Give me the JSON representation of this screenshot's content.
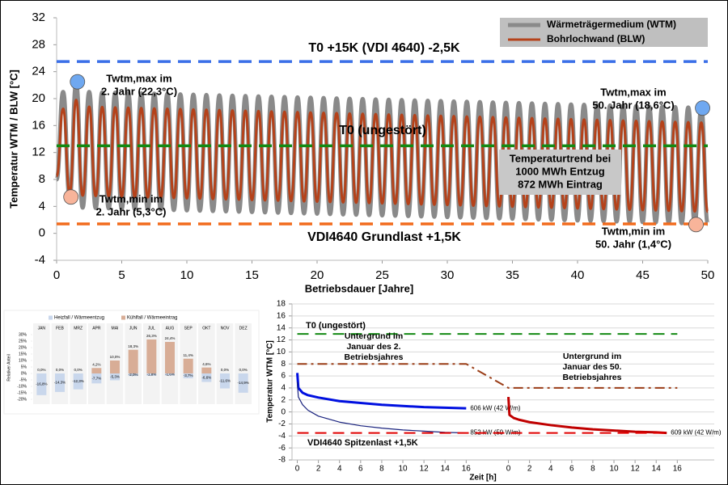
{
  "chart_data": [
    {
      "type": "line",
      "y_label": "Temperatur WTM / BLW [°C]",
      "x_label": "Betriebsdauer [Jahre]",
      "xlim": [
        0,
        50
      ],
      "xticks": [
        0,
        5,
        10,
        15,
        20,
        25,
        30,
        35,
        40,
        45,
        50
      ],
      "ylim": [
        -4,
        32
      ],
      "yticks": [
        -4,
        0,
        4,
        8,
        12,
        16,
        20,
        24,
        28,
        32
      ],
      "x": [
        0,
        0.5,
        1,
        1.5,
        2,
        2.5,
        3,
        3.5,
        4,
        4.5,
        5,
        5.5,
        6,
        6.5,
        7,
        7.5,
        8,
        8.5,
        9,
        9.5,
        10,
        10.5,
        11,
        11.5,
        12,
        12.5,
        13,
        13.5,
        14,
        14.5,
        15,
        15.5,
        16,
        16.5,
        17,
        17.5,
        18,
        18.5,
        19,
        19.5,
        20,
        20.5,
        21,
        21.5,
        22,
        22.5,
        23,
        23.5,
        24,
        24.5,
        25,
        25.5,
        26,
        26.5,
        27,
        27.5,
        28,
        28.5,
        29,
        29.5,
        30,
        30.5,
        31,
        31.5,
        32,
        32.5,
        33,
        33.5,
        34,
        34.5,
        35,
        35.5,
        36,
        36.5,
        37,
        37.5,
        38,
        38.5,
        39,
        39.5,
        40,
        40.5,
        41,
        41.5,
        42,
        42.5,
        43,
        43.5,
        44,
        44.5,
        45,
        45.5,
        46,
        46.5,
        47,
        47.5,
        48,
        48.5,
        49,
        49.5,
        50
      ],
      "series": [
        {
          "name": "Wärmeträgermedium (WTM)",
          "color": "#8a8a8a",
          "weight": "thick",
          "values": [
            8.0,
            21.0,
            5.3,
            22.3,
            3.8,
            21.0,
            3.75,
            20.95,
            3.7,
            20.9,
            3.65,
            20.85,
            3.6,
            20.8,
            3.55,
            20.75,
            3.5,
            20.7,
            3.45,
            20.65,
            3.4,
            20.6,
            3.35,
            20.55,
            3.3,
            20.5,
            3.25,
            20.45,
            3.2,
            20.4,
            3.15,
            20.35,
            3.1,
            20.3,
            3.05,
            20.25,
            3.0,
            20.2,
            2.95,
            20.15,
            2.9,
            20.1,
            2.85,
            20.05,
            2.8,
            20.0,
            2.75,
            19.95,
            2.7,
            19.9,
            2.65,
            19.85,
            2.6,
            19.8,
            2.55,
            19.75,
            2.5,
            19.7,
            2.45,
            19.65,
            2.4,
            19.6,
            2.35,
            19.55,
            2.3,
            19.5,
            2.25,
            19.45,
            2.2,
            19.4,
            2.15,
            19.35,
            2.1,
            19.3,
            2.05,
            19.25,
            2.0,
            19.2,
            1.95,
            19.15,
            1.9,
            19.1,
            1.85,
            19.05,
            1.8,
            19.0,
            1.75,
            18.95,
            1.7,
            18.9,
            1.65,
            18.85,
            1.6,
            18.8,
            1.55,
            18.75,
            1.5,
            18.7,
            1.45,
            18.6,
            1.4
          ]
        },
        {
          "name": "Bohrlochwand (BLW)",
          "color": "#b5421a",
          "weight": "normal",
          "values": [
            8.5,
            18.5,
            6.0,
            19.8,
            5.6,
            18.8,
            5.55,
            18.75,
            5.5,
            18.7,
            5.45,
            18.65,
            5.4,
            18.6,
            5.35,
            18.55,
            5.3,
            18.5,
            5.25,
            18.45,
            5.2,
            18.4,
            5.15,
            18.35,
            5.1,
            18.3,
            5.05,
            18.25,
            5.0,
            18.2,
            4.95,
            18.15,
            4.9,
            18.1,
            4.85,
            18.05,
            4.8,
            18.0,
            4.75,
            17.95,
            4.7,
            17.9,
            4.65,
            17.85,
            4.6,
            17.8,
            4.55,
            17.75,
            4.5,
            17.7,
            4.45,
            17.65,
            4.4,
            17.6,
            4.35,
            17.55,
            4.3,
            17.5,
            4.25,
            17.45,
            4.2,
            17.4,
            4.15,
            17.35,
            4.1,
            17.3,
            4.05,
            17.25,
            4.0,
            17.2,
            3.95,
            17.15,
            3.9,
            17.1,
            3.85,
            17.05,
            3.8,
            17.0,
            3.75,
            16.95,
            3.7,
            16.9,
            3.65,
            16.85,
            3.6,
            16.8,
            3.55,
            16.75,
            3.5,
            16.7,
            3.45,
            16.65,
            3.4,
            16.6,
            3.35,
            16.55,
            3.3,
            16.5,
            3.25,
            16.45,
            3.2
          ]
        }
      ],
      "legend": "top-right",
      "reference_lines": [
        {
          "label": "T0 +15K (VDI 4640) -2,5K",
          "value": 25.5,
          "color": "#3a6fe8"
        },
        {
          "label": "T0 (ungestört)",
          "value": 13,
          "color": "#138a13"
        },
        {
          "label": "VDI4640 Grundlast +1,5K",
          "value": 1.4,
          "color": "#f26b1d"
        }
      ],
      "annotations": [
        {
          "lines": [
            "Twtm,max im",
            "2. Jahr (22,3°C)"
          ],
          "x": 1.6,
          "y": 22.5,
          "color": "#6fa8f0"
        },
        {
          "lines": [
            "Twtm,min im",
            "2. Jahr (5,3°C)"
          ],
          "x": 1.1,
          "y": 5.4,
          "color": "#f8b49a"
        },
        {
          "lines": [
            "Twtm,max im",
            "50. Jahr (18,6°C)"
          ],
          "x": 49.6,
          "y": 18.6,
          "color": "#6fa8f0"
        },
        {
          "lines": [
            "Twtm,min im",
            "50. Jahr (1,4°C)"
          ],
          "x": 49.1,
          "y": 1.3,
          "color": "#f8b49a"
        }
      ],
      "note": {
        "lines": [
          "Temperaturtrend bei",
          "1000 MWh Entzug",
          "872 MWh Eintrag"
        ]
      }
    },
    {
      "type": "bar",
      "y_label": "Relativer Anteil",
      "categories": [
        "JAN",
        "FEB",
        "MRZ",
        "APR",
        "MAI",
        "JUN",
        "JUL",
        "AUG",
        "SEP",
        "OKT",
        "NOV",
        "DEZ"
      ],
      "ylim": [
        -20,
        30
      ],
      "yticks": [
        {
          "value": 30,
          "label": "30%"
        },
        {
          "value": 25,
          "label": "25%"
        },
        {
          "value": 20,
          "label": "20%"
        },
        {
          "value": 15,
          "label": "15%"
        },
        {
          "value": 10,
          "label": "10%"
        },
        {
          "value": 5,
          "label": "5%"
        },
        {
          "value": 0,
          "label": "0%"
        },
        {
          "value": -5,
          "label": "-5%"
        },
        {
          "value": -10,
          "label": "-10%"
        },
        {
          "value": -15,
          "label": "-15%"
        },
        {
          "value": -20,
          "label": "-20%"
        }
      ],
      "legend": "top",
      "series": [
        {
          "name": "Heizfall / Wärmeentzug",
          "color": "#c9d7ec",
          "values": [
            -16.8,
            -14.3,
            -12.3,
            -7.7,
            -5.3,
            -2.0,
            -1.8,
            -1.6,
            -3.7,
            -6.6,
            -11.6,
            -14.9
          ],
          "value_labels": [
            "-16,8%",
            "-14,3%",
            "-12,3%",
            "-7,7%",
            "-5,3%",
            "-2,0%",
            "-1,8%",
            "-1,6%",
            "-3,7%",
            "-6,6%",
            "-11,6%",
            "-14,9%"
          ]
        },
        {
          "name": "Kühlfall / Wärmeeintrag",
          "color": "#d8ad96",
          "values": [
            0,
            0,
            0,
            4.2,
            10.0,
            18.3,
            26.3,
            24.4,
            11.4,
            4.6,
            0,
            0
          ],
          "value_labels": [
            "0,0%",
            "0,0%",
            "0,0%",
            "4,2%",
            "10,0%",
            "18,3%",
            "26,3%",
            "24,4%",
            "11,4%",
            "4,6%",
            "0,0%",
            "0,0%"
          ]
        }
      ]
    },
    {
      "type": "line",
      "y_label": "Temperatur WTM [°C]",
      "x_label": "Zeit [h]",
      "ylim": [
        -8,
        18
      ],
      "yticks": [
        -8,
        -6,
        -4,
        -2,
        0,
        2,
        4,
        6,
        8,
        10,
        12,
        14,
        16,
        18
      ],
      "grid": true,
      "panels": [
        {
          "xlim": [
            -0.5,
            19.5
          ],
          "xticks": [
            0,
            2,
            4,
            6,
            8,
            10,
            12,
            14,
            16
          ]
        },
        {
          "xlim": [
            -0.5,
            19.5
          ],
          "xticks": [
            0,
            2,
            4,
            6,
            8,
            10,
            12,
            14,
            16
          ]
        }
      ],
      "series": [
        {
          "name": "T0 (ungestört)",
          "color": "#138a13",
          "style": "dashed",
          "weight": "normal",
          "panel": [
            0,
            1
          ],
          "x": [
            0,
            16
          ],
          "values": [
            13,
            13
          ]
        },
        {
          "color": "#9a3d17",
          "style": "dashdot",
          "weight": "normal",
          "panel": [
            0,
            0,
            1,
            1
          ],
          "x": [
            0,
            16,
            0,
            16
          ],
          "values": [
            8,
            8,
            4,
            4
          ]
        },
        {
          "name": "606 kW (42 W/m)",
          "color": "#0010e0",
          "style": "solid",
          "weight": "thick",
          "panel": [
            0,
            0,
            0,
            0,
            0,
            0,
            0,
            0,
            0,
            0,
            0,
            0
          ],
          "x": [
            0,
            0.1,
            0.5,
            1,
            2,
            4,
            6,
            8,
            10,
            12,
            14,
            16
          ],
          "values": [
            6.5,
            4.0,
            3.2,
            2.8,
            2.4,
            1.8,
            1.5,
            1.2,
            1.0,
            0.8,
            0.7,
            0.6
          ]
        },
        {
          "name": "852 kW (59 W/m)",
          "color": "#1a237e",
          "style": "solid",
          "weight": "thin",
          "panel": [
            0,
            0,
            0,
            0,
            0,
            0,
            0,
            0,
            0,
            0,
            0,
            0
          ],
          "x": [
            0,
            0.1,
            0.5,
            1,
            2,
            4,
            6,
            8,
            10,
            12,
            14,
            16
          ],
          "values": [
            5.0,
            2.5,
            1.2,
            0.3,
            -0.7,
            -1.7,
            -2.3,
            -2.7,
            -3.0,
            -3.2,
            -3.4,
            -3.5
          ]
        },
        {
          "name": "609 kW (42 W/m)",
          "color": "#c00000",
          "style": "solid",
          "weight": "thick",
          "panel": [
            1,
            1,
            1,
            1,
            1,
            1,
            1,
            1,
            1,
            1,
            1,
            1
          ],
          "x": [
            0,
            0.1,
            0.5,
            1,
            2,
            4,
            6,
            8,
            10,
            12,
            14,
            15
          ],
          "values": [
            2.5,
            -0.5,
            -1.0,
            -1.3,
            -1.7,
            -2.2,
            -2.6,
            -2.9,
            -3.1,
            -3.3,
            -3.4,
            -3.5
          ]
        },
        {
          "name": "VDI4640 Spitzenlast +1,5K",
          "color": "#e00000",
          "style": "dashed",
          "weight": "normal",
          "panel": [
            0,
            1
          ],
          "x": [
            0,
            15
          ],
          "values": [
            -3.5,
            -3.5
          ]
        }
      ],
      "texts": [
        {
          "lines": [
            "Untergrund im",
            "Januar des 2.",
            "Betriebsjahres"
          ]
        },
        {
          "lines": [
            "Untergrund im",
            "Januar des 50.",
            "Betriebsjahres"
          ]
        }
      ]
    }
  ]
}
